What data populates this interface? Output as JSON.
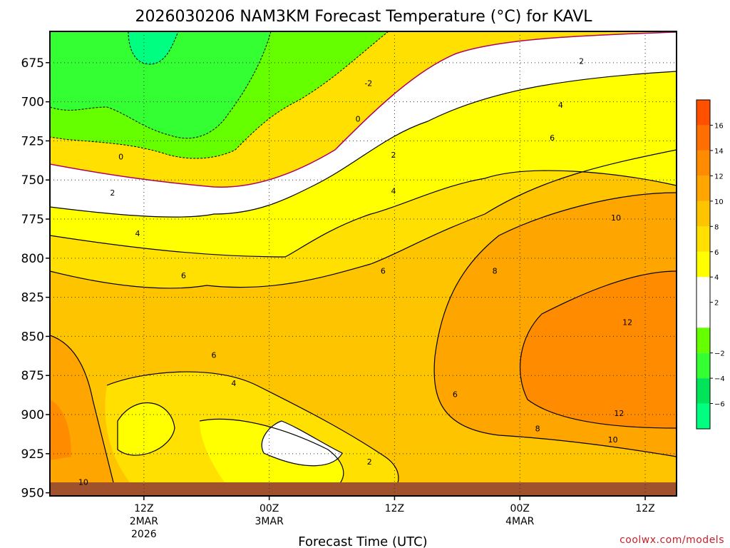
{
  "chart_data": {
    "type": "heatmap",
    "title": "2026030206 NAM3KM Forecast Temperature (°C) for KAVL",
    "xlabel": "Forecast Time (UTC)",
    "ylabel": "",
    "y_range_hpa": [
      655,
      952
    ],
    "x_range_hours_from_2Mar00Z": [
      3,
      63
    ],
    "y_ticks": [
      "675",
      "700",
      "725",
      "750",
      "775",
      "800",
      "825",
      "850",
      "875",
      "900",
      "925",
      "950"
    ],
    "y_tick_values": [
      675,
      700,
      725,
      750,
      775,
      800,
      825,
      850,
      875,
      900,
      925,
      950
    ],
    "x_ticks": [
      {
        "hour": 12,
        "lines": [
          "12Z",
          "2MAR",
          "2026"
        ]
      },
      {
        "hour": 24,
        "lines": [
          "00Z",
          "3MAR"
        ]
      },
      {
        "hour": 36,
        "lines": [
          "12Z"
        ]
      },
      {
        "hour": 48,
        "lines": [
          "00Z",
          "4MAR"
        ]
      },
      {
        "hour": 60,
        "lines": [
          "12Z"
        ]
      }
    ],
    "colorbar": {
      "ticks": [
        "16",
        "14",
        "12",
        "10",
        "8",
        "6",
        "4",
        "2",
        "−2",
        "−4",
        "−6"
      ],
      "tick_values": [
        16,
        14,
        12,
        10,
        8,
        6,
        4,
        2,
        -2,
        -4,
        -6
      ],
      "levels": [
        -8,
        -6,
        -4,
        -2,
        0,
        2,
        4,
        6,
        8,
        10,
        12,
        14,
        16,
        18
      ],
      "colors": [
        "#00ff80",
        "#00e45a",
        "#33ff33",
        "#66ff00",
        "#ffffff",
        "#ffffff",
        "#ffff00",
        "#ffe000",
        "#ffc400",
        "#ffa500",
        "#ff8c00",
        "#ff6e00",
        "#ff5000",
        "#ff3000"
      ]
    },
    "contour_labels": [
      {
        "text": "-2",
        "hour": 33.5,
        "p": 688
      },
      {
        "text": "0",
        "hour": 32.5,
        "p": 711
      },
      {
        "text": "0",
        "hour": 9.8,
        "p": 735
      },
      {
        "text": "2",
        "hour": 9.0,
        "p": 758
      },
      {
        "text": "2",
        "hour": 35.9,
        "p": 734
      },
      {
        "text": "2",
        "hour": 53.9,
        "p": 674
      },
      {
        "text": "2",
        "hour": 33.6,
        "p": 930
      },
      {
        "text": "4",
        "hour": 11.4,
        "p": 784
      },
      {
        "text": "4",
        "hour": 35.9,
        "p": 757
      },
      {
        "text": "4",
        "hour": 51.9,
        "p": 702
      },
      {
        "text": "4",
        "hour": 20.6,
        "p": 880
      },
      {
        "text": "6",
        "hour": 15.8,
        "p": 811
      },
      {
        "text": "6",
        "hour": 34.9,
        "p": 808
      },
      {
        "text": "6",
        "hour": 51.1,
        "p": 723
      },
      {
        "text": "6",
        "hour": 18.7,
        "p": 862
      },
      {
        "text": "6",
        "hour": 41.8,
        "p": 887
      },
      {
        "text": "8",
        "hour": 45.6,
        "p": 808
      },
      {
        "text": "8",
        "hour": 49.7,
        "p": 909
      },
      {
        "text": "10",
        "hour": 57.2,
        "p": 774
      },
      {
        "text": "10",
        "hour": 56.9,
        "p": 916
      },
      {
        "text": "10",
        "hour": 6.2,
        "p": 943
      },
      {
        "text": "12",
        "hour": 58.3,
        "p": 841
      },
      {
        "text": "12",
        "hour": 57.5,
        "p": 899
      }
    ],
    "ground_color": "#a0522d",
    "ground_level_hpa": 947
  },
  "credit": "coolwx.com/models"
}
